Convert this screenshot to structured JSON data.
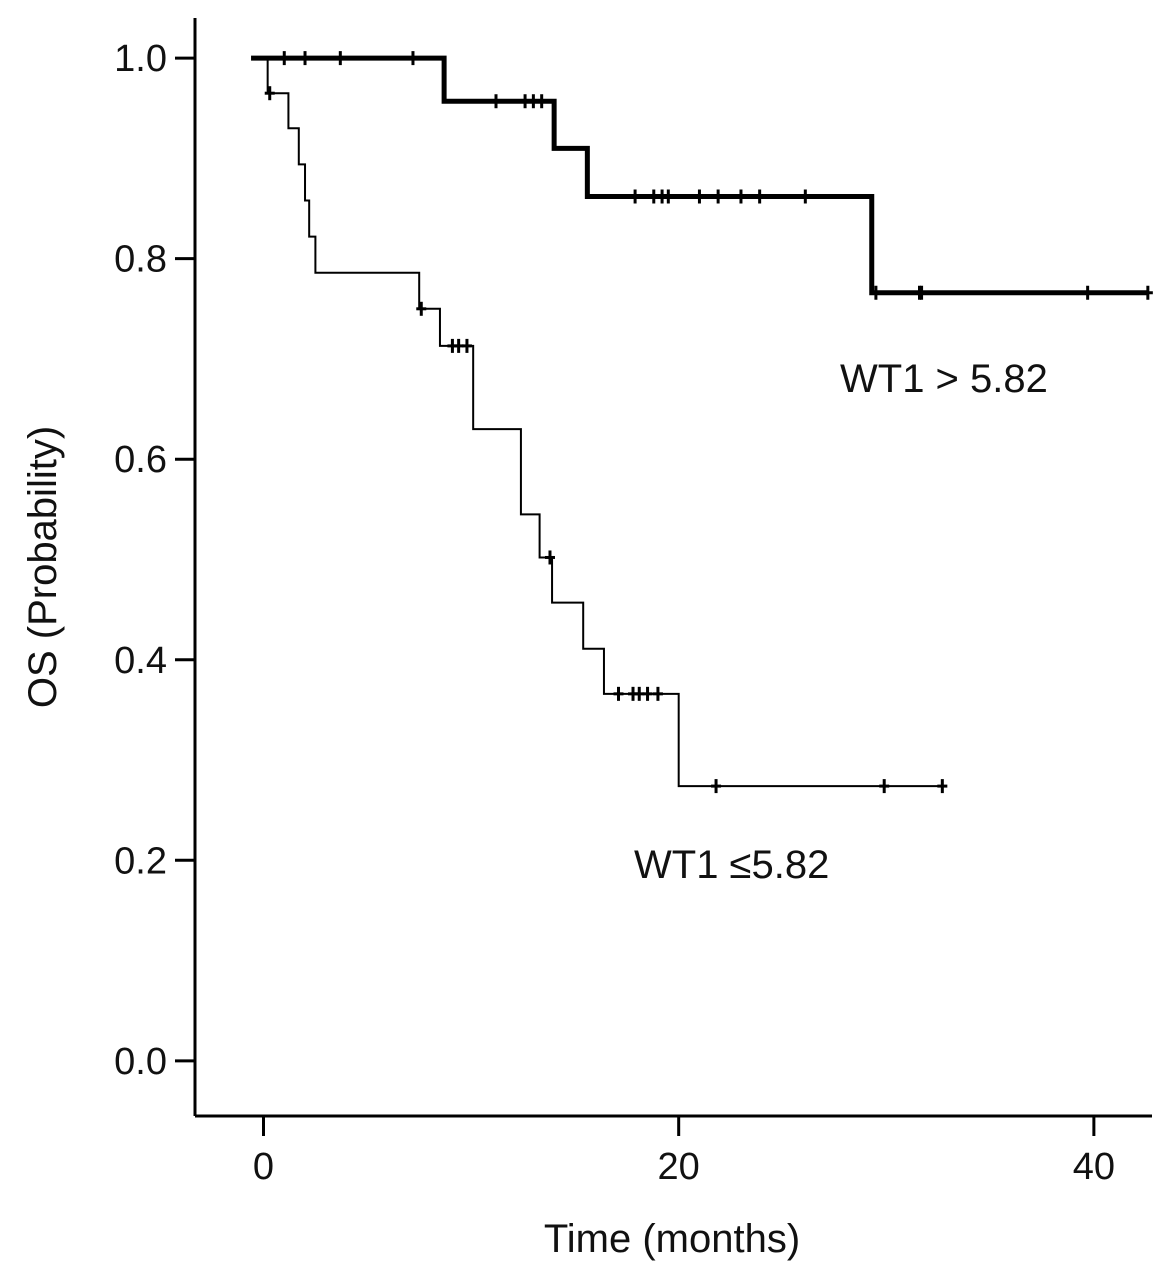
{
  "chart_data": {
    "type": "line",
    "title": "",
    "xlabel": "Time (months)",
    "ylabel": "OS (Probability)",
    "xlim": [
      -3.3,
      42.8
    ],
    "ylim": [
      -0.055,
      1.04
    ],
    "xticks": [
      0,
      20,
      40
    ],
    "xtick_labels": [
      "0",
      "20",
      "40"
    ],
    "yticks": [
      0.0,
      0.2,
      0.4,
      0.6,
      0.8,
      1.0
    ],
    "ytick_labels": [
      "0.0",
      "0.2",
      "0.4",
      "0.6",
      "0.8",
      "1.0"
    ],
    "grid": false,
    "series": [
      {
        "name": "WT1 > 5.82",
        "step": [
          [
            -0.6,
            1.0
          ],
          [
            8.7,
            0.957
          ],
          [
            14.0,
            0.91
          ],
          [
            15.6,
            0.862
          ],
          [
            29.3,
            0.766
          ],
          [
            42.6,
            0.766
          ]
        ],
        "censored": [
          [
            1.0,
            1.0
          ],
          [
            2.0,
            1.0
          ],
          [
            3.7,
            1.0
          ],
          [
            7.2,
            1.0
          ],
          [
            11.2,
            0.957
          ],
          [
            12.6,
            0.957
          ],
          [
            13.0,
            0.957
          ],
          [
            13.4,
            0.957
          ],
          [
            17.9,
            0.862
          ],
          [
            18.8,
            0.862
          ],
          [
            19.2,
            0.862
          ],
          [
            19.5,
            0.862
          ],
          [
            21.0,
            0.862
          ],
          [
            21.9,
            0.862
          ],
          [
            23.0,
            0.862
          ],
          [
            23.9,
            0.862
          ],
          [
            26.1,
            0.862
          ],
          [
            29.5,
            0.766
          ],
          [
            31.6,
            0.766
          ],
          [
            31.7,
            0.766
          ],
          [
            39.7,
            0.766
          ],
          [
            42.6,
            0.766
          ]
        ]
      },
      {
        "name": "WT1 ≤5.82",
        "step": [
          [
            0.0,
            1.0
          ],
          [
            0.2,
            0.965
          ],
          [
            1.2,
            0.93
          ],
          [
            1.7,
            0.894
          ],
          [
            2.0,
            0.858
          ],
          [
            2.2,
            0.822
          ],
          [
            2.5,
            0.786
          ],
          [
            7.5,
            0.75
          ],
          [
            8.5,
            0.713
          ],
          [
            10.1,
            0.63
          ],
          [
            12.4,
            0.545
          ],
          [
            13.3,
            0.502
          ],
          [
            13.9,
            0.457
          ],
          [
            15.4,
            0.411
          ],
          [
            16.4,
            0.366
          ],
          [
            20.0,
            0.274
          ],
          [
            32.7,
            0.274
          ]
        ],
        "censored": [
          [
            0.3,
            0.965
          ],
          [
            7.6,
            0.75
          ],
          [
            9.1,
            0.713
          ],
          [
            9.4,
            0.713
          ],
          [
            9.8,
            0.713
          ],
          [
            13.8,
            0.502
          ],
          [
            17.1,
            0.366
          ],
          [
            17.8,
            0.366
          ],
          [
            18.1,
            0.366
          ],
          [
            18.5,
            0.366
          ],
          [
            19.0,
            0.366
          ],
          [
            21.8,
            0.274
          ],
          [
            29.9,
            0.274
          ],
          [
            32.7,
            0.274
          ]
        ]
      }
    ]
  }
}
